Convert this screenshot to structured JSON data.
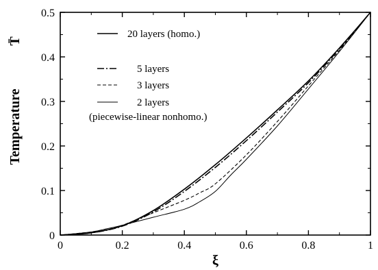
{
  "chart_data": {
    "type": "line",
    "title": "",
    "xlabel": "ξ",
    "ylabel": "Temperature",
    "ylabel_symbol": "T̄",
    "xlim": [
      0,
      1
    ],
    "ylim": [
      0,
      0.5
    ],
    "x_ticks": [
      "0",
      "0.2",
      "0.4",
      "0.6",
      "0.8",
      "1"
    ],
    "y_ticks": [
      "0",
      "0.1",
      "0.2",
      "0.3",
      "0.4",
      "0.5"
    ],
    "grid": false,
    "legend_position": "top-left",
    "legend_note": "(piecewise-linear nonhomo.)",
    "series": [
      {
        "name": "20 layers (homo.)",
        "style": "solid",
        "width": 1.6,
        "x": [
          0,
          0.1,
          0.2,
          0.3,
          0.4,
          0.5,
          0.6,
          0.7,
          0.8,
          0.9,
          1.0
        ],
        "y": [
          0,
          0.005,
          0.021,
          0.055,
          0.103,
          0.158,
          0.218,
          0.281,
          0.346,
          0.42,
          0.5
        ]
      },
      {
        "name": "5 layers",
        "style": "dashdot",
        "width": 1.6,
        "x": [
          0,
          0.1,
          0.2,
          0.3,
          0.4,
          0.5,
          0.6,
          0.7,
          0.8,
          0.9,
          1.0
        ],
        "y": [
          0,
          0.005,
          0.02,
          0.052,
          0.098,
          0.152,
          0.212,
          0.276,
          0.342,
          0.418,
          0.5
        ]
      },
      {
        "name": "3 layers",
        "style": "dashed",
        "width": 1.1,
        "x": [
          0,
          0.1,
          0.15,
          0.2,
          0.3,
          0.4,
          0.45,
          0.5,
          0.6,
          0.7,
          0.8,
          0.9,
          1.0
        ],
        "y": [
          0,
          0.007,
          0.014,
          0.022,
          0.05,
          0.078,
          0.095,
          0.115,
          0.18,
          0.255,
          0.335,
          0.415,
          0.5
        ]
      },
      {
        "name": "2 layers",
        "style": "solid",
        "width": 1.0,
        "x": [
          0,
          0.1,
          0.15,
          0.2,
          0.3,
          0.4,
          0.45,
          0.5,
          0.55,
          0.6,
          0.7,
          0.8,
          0.9,
          1.0
        ],
        "y": [
          0,
          0.007,
          0.014,
          0.022,
          0.04,
          0.058,
          0.075,
          0.098,
          0.135,
          0.17,
          0.245,
          0.328,
          0.412,
          0.5
        ]
      }
    ]
  }
}
